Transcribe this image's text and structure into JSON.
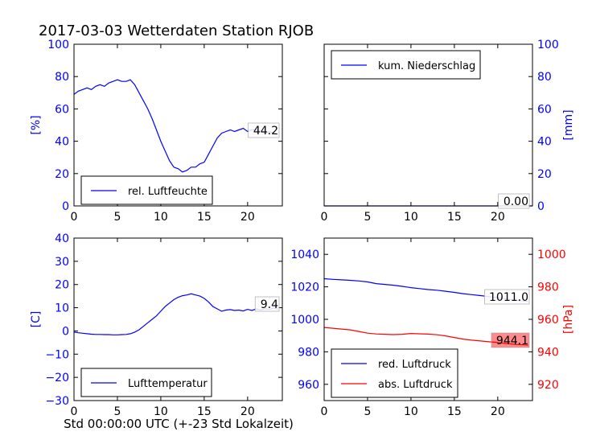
{
  "figure": {
    "title": "2017-03-03 Wetterdaten Station RJOB",
    "xlabel": "Std 00:00:00 UTC (+-23 Std Lokalzeit)"
  },
  "colors": {
    "blue": "#0000ff",
    "red": "#ff0000",
    "black": "#000000"
  },
  "chart_data": [
    {
      "id": "humidity",
      "type": "line",
      "title": "",
      "xlabel": "",
      "ylabel": "[%]",
      "xlim": [
        0,
        24
      ],
      "ylim": [
        0,
        100
      ],
      "xticks": [
        0,
        5,
        10,
        15,
        20
      ],
      "yticks": [
        0,
        20,
        40,
        60,
        80,
        100
      ],
      "grid": false,
      "legend_position": "lower-left",
      "series": [
        {
          "name": "rel. Luftfeuchte",
          "color": "#0000ff",
          "x": [
            0,
            0.5,
            1,
            1.5,
            2,
            2.5,
            3,
            3.5,
            4,
            4.5,
            5,
            5.5,
            6,
            6.5,
            7,
            7.5,
            8,
            8.5,
            9,
            9.5,
            10,
            10.5,
            11,
            11.5,
            12,
            12.5,
            13,
            13.5,
            14,
            14.5,
            15,
            15.5,
            16,
            16.5,
            17,
            17.5,
            18,
            18.5,
            19,
            19.5,
            20,
            20.5,
            21,
            21.5,
            22,
            22.5,
            23,
            23.5
          ],
          "values": [
            69,
            71,
            72,
            73,
            72,
            74,
            75,
            74,
            76,
            77,
            78,
            77,
            77,
            78,
            75,
            70,
            65,
            60,
            54,
            47,
            40,
            34,
            28,
            24,
            23,
            21,
            22,
            24,
            24,
            26,
            27,
            32,
            37,
            42,
            45,
            46,
            47,
            46,
            47,
            48,
            46,
            47,
            47,
            46,
            45,
            46,
            45,
            44
          ]
        }
      ],
      "end_label": "44.2"
    },
    {
      "id": "precip",
      "type": "line",
      "title": "",
      "xlabel": "",
      "ylabel": "[mm]",
      "xlim": [
        0,
        24
      ],
      "ylim": [
        0,
        100
      ],
      "xticks": [
        0,
        5,
        10,
        15,
        20
      ],
      "yticks": [
        0,
        20,
        40,
        60,
        80,
        100
      ],
      "y_axis_side": "right",
      "grid": false,
      "legend_position": "top-left",
      "series": [
        {
          "name": "kum. Niederschlag",
          "color": "#0000ff",
          "x": [
            0,
            24
          ],
          "values": [
            0,
            0
          ]
        }
      ],
      "end_label": "0.00"
    },
    {
      "id": "temperature",
      "type": "line",
      "title": "",
      "xlabel": "",
      "ylabel": "[C]",
      "xlim": [
        0,
        24
      ],
      "ylim": [
        -30,
        40
      ],
      "xticks": [
        0,
        5,
        10,
        15,
        20
      ],
      "yticks": [
        -30,
        -20,
        -10,
        0,
        10,
        20,
        30,
        40
      ],
      "grid": false,
      "legend_position": "lower-left",
      "series": [
        {
          "name": "Lufttemperatur",
          "color": "#0000ff",
          "x": [
            0,
            0.5,
            1,
            1.5,
            2,
            2.5,
            3,
            3.5,
            4,
            4.5,
            5,
            5.5,
            6,
            6.5,
            7,
            7.5,
            8,
            8.5,
            9,
            9.5,
            10,
            10.5,
            11,
            11.5,
            12,
            12.5,
            13,
            13.5,
            14,
            14.5,
            15,
            15.5,
            16,
            16.5,
            17,
            17.5,
            18,
            18.5,
            19,
            19.5,
            20,
            20.5,
            21,
            21.5,
            22,
            22.5,
            23,
            23.5
          ],
          "values": [
            -0.5,
            -0.8,
            -1,
            -1.2,
            -1.4,
            -1.5,
            -1.5,
            -1.6,
            -1.6,
            -1.7,
            -1.7,
            -1.6,
            -1.5,
            -1.2,
            -0.5,
            0.5,
            2,
            3.5,
            5,
            6.5,
            8.5,
            10.5,
            12,
            13.5,
            14.5,
            15.2,
            15.5,
            16,
            15.5,
            15,
            14,
            12.5,
            10.5,
            9.5,
            8.5,
            9,
            9.2,
            8.8,
            9,
            8.6,
            9.3,
            8.8,
            9.5,
            9,
            9.6,
            9.3,
            9.8,
            9.4
          ]
        }
      ],
      "end_label": "9.4"
    },
    {
      "id": "pressure",
      "type": "line",
      "title": "",
      "xlabel": "",
      "ylabel": "[hPa]",
      "xlim": [
        0,
        24
      ],
      "ylim": [
        950,
        1050
      ],
      "ylim_right": [
        910,
        1010
      ],
      "xticks": [
        0,
        5,
        10,
        15,
        20
      ],
      "yticks": [
        960,
        980,
        1000,
        1020,
        1040
      ],
      "yticks_right": [
        920,
        940,
        960,
        980,
        1000
      ],
      "grid": false,
      "legend_position": "lower-left",
      "series": [
        {
          "name": "red. Luftdruck",
          "color": "#0000ff",
          "axis": "left",
          "x": [
            0,
            1,
            2,
            3,
            4,
            5,
            6,
            7,
            8,
            9,
            10,
            11,
            12,
            13,
            14,
            15,
            16,
            17,
            18,
            19,
            20,
            21,
            22,
            23,
            23.5
          ],
          "values": [
            1025,
            1024.6,
            1024.3,
            1024,
            1023.6,
            1023,
            1022,
            1021.5,
            1021,
            1020.3,
            1019.5,
            1018.9,
            1018.3,
            1017.9,
            1017.3,
            1016.6,
            1015.8,
            1015.2,
            1014.6,
            1014,
            1013.2,
            1012.5,
            1011.8,
            1011.3,
            1011
          ]
        },
        {
          "name": "abs. Luftdruck",
          "color": "#ff0000",
          "axis": "right",
          "x": [
            0,
            1,
            2,
            3,
            4,
            5,
            6,
            7,
            8,
            9,
            10,
            11,
            12,
            13,
            14,
            15,
            16,
            17,
            18,
            19,
            20,
            21,
            22,
            23,
            23.5
          ],
          "values": [
            955,
            954.5,
            954,
            953.5,
            952.5,
            951.5,
            951,
            950.8,
            950.6,
            950.8,
            951.3,
            951.1,
            950.9,
            950.5,
            949.8,
            948.8,
            947.8,
            947.2,
            946.7,
            946.2,
            945.7,
            945.1,
            944.6,
            944.3,
            944.1
          ]
        }
      ],
      "end_labels": [
        "1011.0",
        "944.1"
      ]
    }
  ]
}
